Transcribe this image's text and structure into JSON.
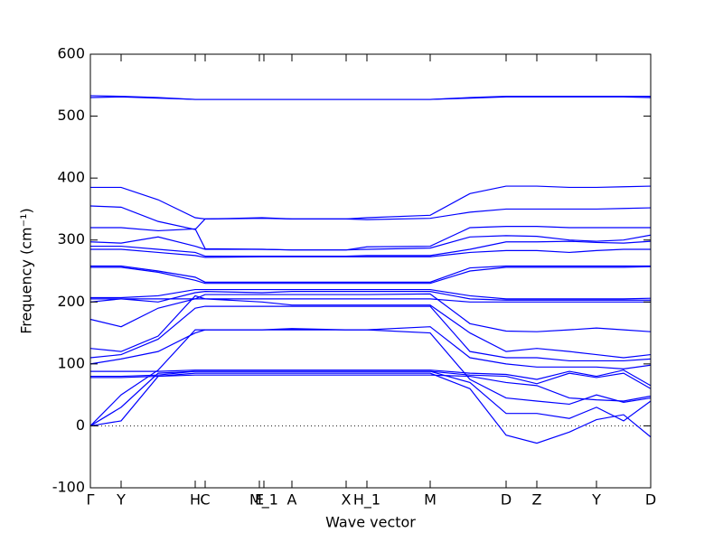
{
  "chart_data": {
    "type": "line",
    "x_label": "Wave vector",
    "y_label": "Frequency (cm⁻¹)",
    "color": "#0000ff",
    "reference_line": 0,
    "x": [
      0,
      0.34,
      0.75,
      1.16,
      1.27,
      1.9,
      2.23,
      2.83,
      3.06,
      3.76,
      4.2,
      4.6,
      4.94,
      5.3,
      5.6,
      5.9,
      6.2
    ],
    "xlim": [
      0,
      6.2
    ],
    "xticks": [
      {
        "value": 0,
        "label": "Γ"
      },
      {
        "value": 0.34,
        "label": "Y"
      },
      {
        "value": 1.16,
        "label": "H"
      },
      {
        "value": 1.27,
        "label": "C"
      },
      {
        "value": 1.87,
        "label": "E"
      },
      {
        "value": 1.92,
        "label": "M_1"
      },
      {
        "value": 2.23,
        "label": "A"
      },
      {
        "value": 2.83,
        "label": "X"
      },
      {
        "value": 3.06,
        "label": "H_1"
      },
      {
        "value": 3.76,
        "label": "M"
      },
      {
        "value": 4.6,
        "label": "D"
      },
      {
        "value": 4.94,
        "label": "Z"
      },
      {
        "value": 5.6,
        "label": "Y"
      },
      {
        "value": 6.2,
        "label": "D"
      }
    ],
    "ylim": [
      -100,
      600
    ],
    "yticks": [
      -100,
      0,
      100,
      200,
      300,
      400,
      500,
      600
    ],
    "series": [
      {
        "values": [
          533,
          532,
          530,
          527,
          527,
          527,
          527,
          527,
          527,
          527,
          530,
          532,
          532,
          532,
          532,
          532,
          532
        ]
      },
      {
        "values": [
          530,
          531,
          529,
          527,
          527,
          527,
          527,
          527,
          527,
          527,
          529,
          531,
          531,
          531,
          531,
          531,
          530
        ]
      },
      {
        "values": [
          385,
          385,
          365,
          336,
          334,
          335,
          334,
          334,
          336,
          340,
          375,
          387,
          387,
          385,
          385,
          386,
          387
        ]
      },
      {
        "values": [
          355,
          353,
          330,
          317,
          334,
          336,
          334,
          334,
          333,
          335,
          345,
          350,
          350,
          350,
          350,
          351,
          352
        ]
      },
      {
        "values": [
          320,
          320,
          315,
          318,
          286,
          285,
          284,
          284,
          289,
          290,
          320,
          322,
          322,
          320,
          320,
          320,
          320
        ]
      },
      {
        "values": [
          297,
          295,
          305,
          290,
          285,
          285,
          284,
          284,
          285,
          287,
          305,
          307,
          306,
          300,
          298,
          300,
          308
        ]
      },
      {
        "values": [
          290,
          290,
          285,
          280,
          274,
          274,
          274,
          274,
          275,
          275,
          285,
          297,
          297,
          298,
          296,
          295,
          298
        ]
      },
      {
        "values": [
          285,
          285,
          280,
          275,
          272,
          273,
          273,
          273,
          273,
          273,
          280,
          283,
          283,
          280,
          283,
          285,
          285
        ]
      },
      {
        "values": [
          258,
          258,
          250,
          240,
          232,
          232,
          232,
          232,
          232,
          232,
          255,
          258,
          258,
          258,
          258,
          258,
          258
        ]
      },
      {
        "values": [
          256,
          256,
          248,
          235,
          230,
          230,
          230,
          230,
          230,
          230,
          250,
          256,
          256,
          256,
          256,
          256,
          257
        ]
      },
      {
        "values": [
          207,
          207,
          210,
          220,
          220,
          220,
          220,
          220,
          220,
          220,
          210,
          205,
          205,
          205,
          205,
          205,
          206
        ]
      },
      {
        "values": [
          205,
          205,
          200,
          215,
          217,
          215,
          217,
          217,
          217,
          217,
          205,
          203,
          203,
          203,
          203,
          203,
          203
        ]
      },
      {
        "values": [
          200,
          205,
          205,
          205,
          205,
          205,
          205,
          205,
          205,
          205,
          200,
          200,
          200,
          200,
          200,
          200,
          200
        ]
      },
      {
        "values": [
          172,
          160,
          190,
          205,
          212,
          212,
          212,
          212,
          212,
          213,
          165,
          153,
          152,
          155,
          158,
          155,
          152
        ]
      },
      {
        "values": [
          125,
          120,
          145,
          210,
          205,
          200,
          195,
          195,
          195,
          195,
          150,
          120,
          125,
          120,
          115,
          110,
          115
        ]
      },
      {
        "values": [
          110,
          115,
          140,
          190,
          193,
          193,
          193,
          193,
          193,
          193,
          120,
          110,
          110,
          105,
          105,
          105,
          108
        ]
      },
      {
        "values": [
          100,
          108,
          120,
          150,
          155,
          155,
          157,
          155,
          155,
          160,
          110,
          100,
          95,
          95,
          95,
          92,
          98
        ]
      },
      {
        "values": [
          88,
          88,
          88,
          90,
          90,
          90,
          90,
          90,
          90,
          90,
          85,
          83,
          75,
          88,
          80,
          90,
          65
        ]
      },
      {
        "values": [
          80,
          80,
          82,
          88,
          88,
          88,
          88,
          88,
          88,
          88,
          82,
          80,
          68,
          85,
          78,
          85,
          60
        ]
      },
      {
        "values": [
          78,
          78,
          80,
          82,
          82,
          82,
          82,
          82,
          82,
          82,
          80,
          70,
          65,
          45,
          42,
          40,
          48
        ]
      },
      {
        "values": [
          0,
          50,
          90,
          155,
          155,
          155,
          155,
          155,
          155,
          150,
          75,
          45,
          40,
          35,
          50,
          38,
          45
        ]
      },
      {
        "values": [
          0,
          30,
          85,
          88,
          88,
          88,
          88,
          88,
          88,
          88,
          70,
          20,
          20,
          12,
          30,
          8,
          40
        ]
      },
      {
        "values": [
          0,
          8,
          80,
          85,
          85,
          85,
          85,
          85,
          85,
          85,
          60,
          -15,
          -28,
          -10,
          10,
          18,
          -18
        ]
      }
    ]
  }
}
